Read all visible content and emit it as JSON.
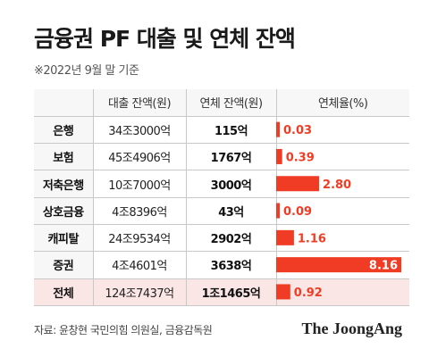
{
  "title": "금융권 PF 대출 및 연체 잔액",
  "subtitle": "※2022년 9월 말 기준",
  "source": "자료: 윤창현 국민의힘 의원실, 금융감독원",
  "brand": "The JoongAng",
  "colors": {
    "bar": "#f03c24",
    "label_red": "#f03c24",
    "total_row": "#fbe6e6",
    "header_bg": "#f7f7f7"
  },
  "chart_data": {
    "type": "table",
    "columns": [
      "",
      "대출 잔액(원)",
      "연체 잔액(원)",
      "연체율(%)"
    ],
    "rows": [
      {
        "name": "은행",
        "loan": "34조3000억",
        "overdue": "115억",
        "rate": 0.03,
        "rate_label": "0.03"
      },
      {
        "name": "보험",
        "loan": "45조4906억",
        "overdue": "1767억",
        "rate": 0.39,
        "rate_label": "0.39"
      },
      {
        "name": "저축은행",
        "loan": "10조7000억",
        "overdue": "3000억",
        "rate": 2.8,
        "rate_label": "2.80"
      },
      {
        "name": "상호금융",
        "loan": "4조8396억",
        "overdue": "43억",
        "rate": 0.09,
        "rate_label": "0.09"
      },
      {
        "name": "캐피탈",
        "loan": "24조9534억",
        "overdue": "2902억",
        "rate": 1.16,
        "rate_label": "1.16"
      },
      {
        "name": "증권",
        "loan": "4조4601억",
        "overdue": "3638억",
        "rate": 8.16,
        "rate_label": "8.16"
      },
      {
        "name": "전체",
        "loan": "124조7437억",
        "overdue": "1조1465억",
        "rate": 0.92,
        "rate_label": "0.92"
      }
    ],
    "rate_range": [
      0,
      8.16
    ]
  }
}
